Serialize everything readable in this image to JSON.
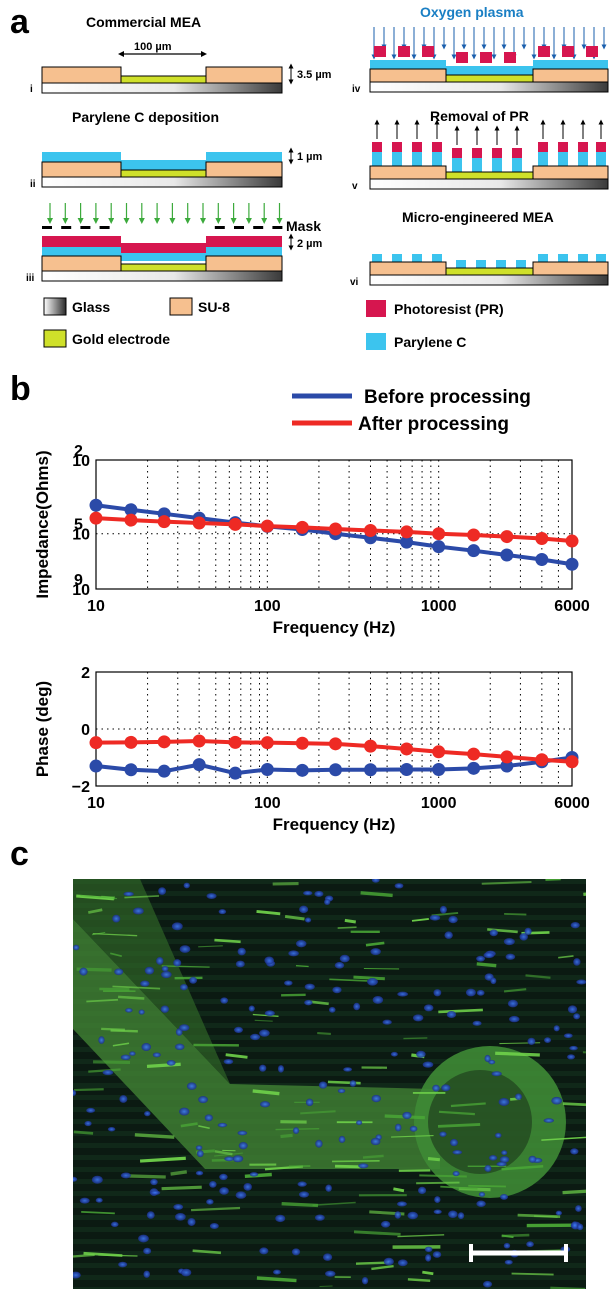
{
  "panel_a": {
    "letter": "a",
    "steps": [
      {
        "numeral": "i",
        "title": "Commercial MEA",
        "dimension": "3.5 µm",
        "width_label": "100 µm"
      },
      {
        "numeral": "ii",
        "title": "Parylene C deposition",
        "dimension": "1 µm"
      },
      {
        "numeral": "iii",
        "title": "",
        "mask_label": "Mask",
        "dimension": "2 µm"
      },
      {
        "numeral": "iv",
        "title": "Oxygen plasma"
      },
      {
        "numeral": "v",
        "title": "Removal of PR"
      },
      {
        "numeral": "vi",
        "title": "Micro-engineered MEA"
      }
    ],
    "legend": [
      {
        "label": "Glass",
        "swatch": "gradient-gray"
      },
      {
        "label": "SU-8",
        "color": "#f6c08f"
      },
      {
        "label": "Gold electrode",
        "color": "#cfe02a"
      },
      {
        "label": "Photoresist (PR)",
        "color": "#d6164f"
      },
      {
        "label": "Parylene C",
        "color": "#3cc4ee"
      }
    ]
  },
  "panel_b": {
    "letter": "b"
  },
  "panel_c": {
    "letter": "c",
    "image": "fluorescence-micrograph",
    "scale_bar": true
  },
  "chart_data": [
    {
      "type": "line",
      "x_scale": "log",
      "y_scale": "log",
      "xlabel": "Frequency (Hz)",
      "ylabel": "Impedance(Ohms)",
      "xlim": [
        10,
        6000
      ],
      "ylim": [
        100,
        1000000000
      ],
      "x_ticks": [
        "10",
        "100",
        "1000",
        "6000"
      ],
      "y_ticks": [
        "10",
        "10",
        "10"
      ],
      "y_tick_exponents": [
        "2",
        "5",
        "9"
      ],
      "grid": true,
      "legend_position": "top-right",
      "series": [
        {
          "name": "Before processing",
          "color": "#2b4aa8",
          "x": [
            10,
            16,
            25,
            40,
            65,
            100,
            160,
            250,
            400,
            650,
            1000,
            1600,
            2500,
            4000,
            6000
          ],
          "y": [
            3500000,
            2000000,
            1200000,
            700000,
            400000,
            250000,
            170000,
            100000,
            60000,
            35000,
            20000,
            12000,
            7000,
            4000,
            2200
          ]
        },
        {
          "name": "After processing",
          "color": "#ee2a24",
          "x": [
            10,
            16,
            25,
            40,
            65,
            100,
            160,
            250,
            400,
            650,
            1000,
            1600,
            2500,
            4000,
            6000
          ],
          "y": [
            700000,
            550000,
            450000,
            380000,
            320000,
            260000,
            220000,
            180000,
            150000,
            125000,
            100000,
            85000,
            70000,
            55000,
            40000
          ]
        }
      ]
    },
    {
      "type": "line",
      "x_scale": "log",
      "xlabel": "Frequency (Hz)",
      "ylabel": "Phase (deg)",
      "xlim": [
        10,
        6000
      ],
      "ylim": [
        -2,
        2
      ],
      "x_ticks": [
        "10",
        "100",
        "1000",
        "6000"
      ],
      "y_ticks": [
        "2",
        "0",
        "−2"
      ],
      "grid": true,
      "series": [
        {
          "name": "Before processing",
          "color": "#2b4aa8",
          "x": [
            10,
            16,
            25,
            40,
            65,
            100,
            160,
            250,
            400,
            650,
            1000,
            1600,
            2500,
            4000,
            6000
          ],
          "y": [
            -1.3,
            -1.43,
            -1.48,
            -1.25,
            -1.55,
            -1.42,
            -1.45,
            -1.43,
            -1.43,
            -1.42,
            -1.42,
            -1.38,
            -1.3,
            -1.15,
            -1.0
          ]
        },
        {
          "name": "After processing",
          "color": "#ee2a24",
          "x": [
            10,
            16,
            25,
            40,
            65,
            100,
            160,
            250,
            400,
            650,
            1000,
            1600,
            2500,
            4000,
            6000
          ],
          "y": [
            -0.48,
            -0.47,
            -0.45,
            -0.42,
            -0.47,
            -0.48,
            -0.5,
            -0.52,
            -0.6,
            -0.7,
            -0.8,
            -0.88,
            -0.98,
            -1.08,
            -1.15
          ]
        }
      ]
    }
  ]
}
